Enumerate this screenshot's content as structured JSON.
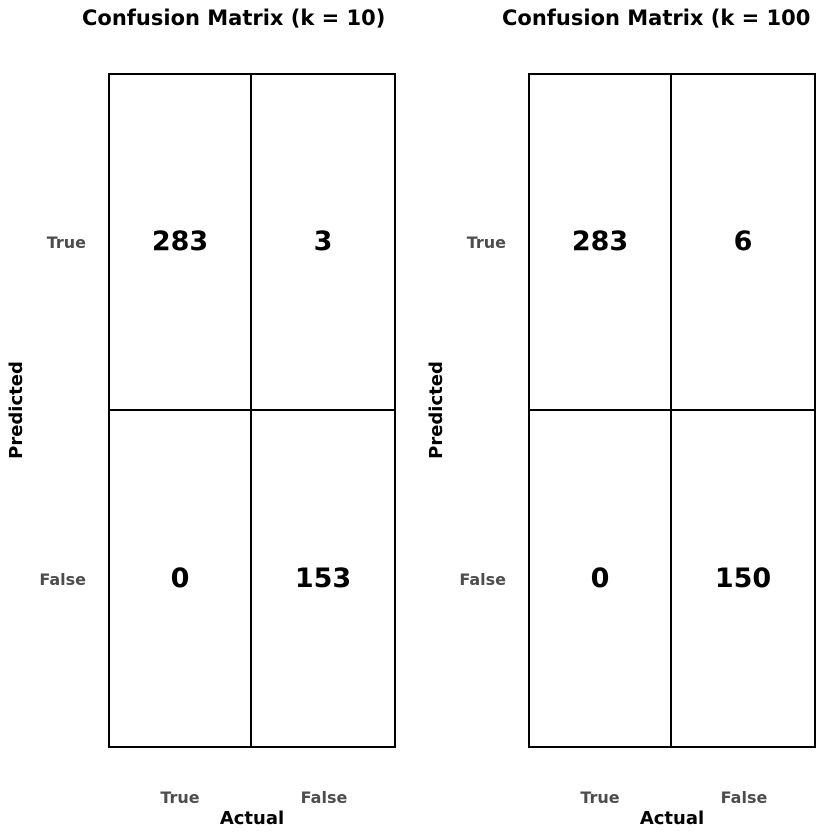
{
  "chart_data": [
    {
      "type": "heatmap",
      "title": "Confusion Matrix (k = 10)",
      "xlabel": "Actual",
      "ylabel": "Predicted",
      "x_categories": [
        "True",
        "False"
      ],
      "y_categories": [
        "True",
        "False"
      ],
      "values": [
        [
          283,
          3
        ],
        [
          0,
          153
        ]
      ],
      "grid": true
    },
    {
      "type": "heatmap",
      "title": "Confusion Matrix (k = 100",
      "xlabel": "Actual",
      "ylabel": "Predicted",
      "x_categories": [
        "True",
        "False"
      ],
      "y_categories": [
        "True",
        "False"
      ],
      "values": [
        [
          283,
          6
        ],
        [
          0,
          150
        ]
      ],
      "grid": true
    }
  ]
}
